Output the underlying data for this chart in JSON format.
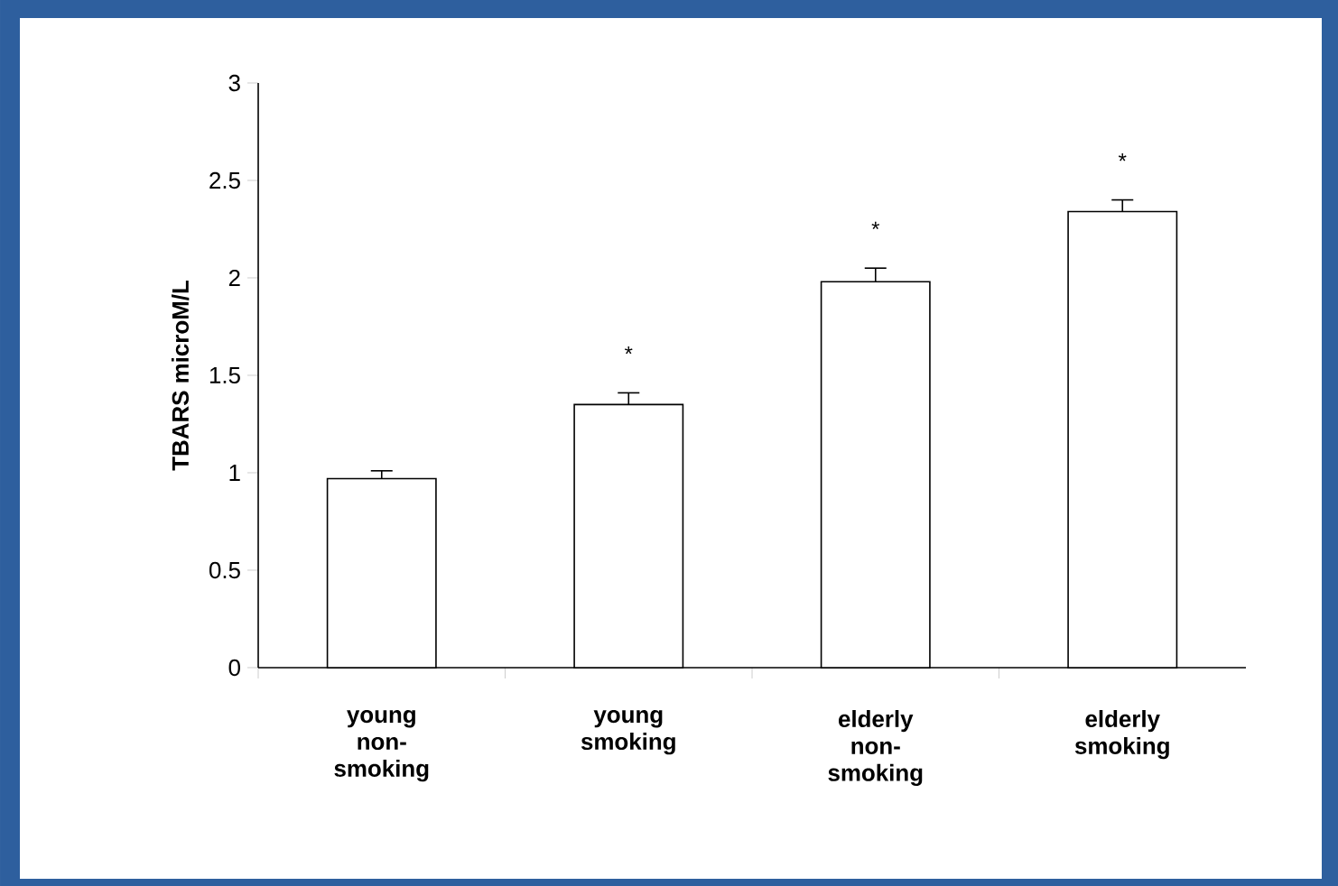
{
  "chart_data": {
    "type": "bar",
    "ylabel": "TBARS microM/L",
    "categories": [
      "young non-smoking",
      "young smoking",
      "elderly non-smoking",
      "elderly smoking"
    ],
    "values": [
      0.97,
      1.35,
      1.98,
      2.34
    ],
    "errors": [
      0.04,
      0.06,
      0.07,
      0.06
    ],
    "color": "#000000",
    "ylim": [
      0,
      3
    ],
    "yticks": [
      0,
      0.5,
      1,
      1.5,
      2,
      2.5,
      3
    ],
    "annotations": [
      "*",
      "*",
      "*"
    ]
  }
}
